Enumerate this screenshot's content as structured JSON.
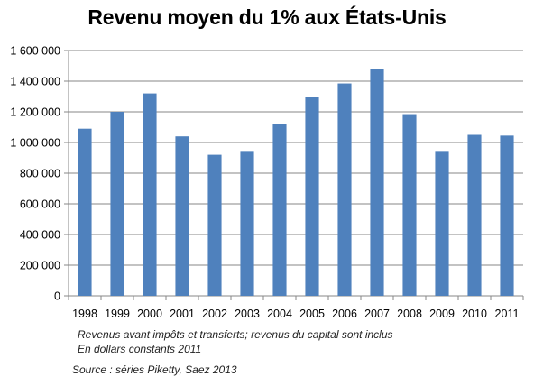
{
  "chart_data": {
    "type": "bar",
    "title": "Revenu moyen du 1% aux États-Unis",
    "categories": [
      "1998",
      "1999",
      "2000",
      "2001",
      "2002",
      "2003",
      "2004",
      "2005",
      "2006",
      "2007",
      "2008",
      "2009",
      "2010",
      "2011"
    ],
    "series": [
      {
        "values": [
          1090000,
          1200000,
          1320000,
          1040000,
          920000,
          945000,
          1120000,
          1295000,
          1385000,
          1480000,
          1185000,
          945000,
          1050000,
          1045000
        ]
      }
    ],
    "ylim": [
      0,
      1600000
    ],
    "yticks": [
      "0",
      "200 000",
      "400 000",
      "600 000",
      "800 000",
      "1 000 000",
      "1 200 000",
      "1 400 000",
      "1 600 000"
    ],
    "grid": true,
    "bar_color": "#4f81bd"
  },
  "notes": {
    "line1": "Revenus avant impôts et transferts; revenus du capital sont inclus",
    "line2": "En dollars constants 2011",
    "source": "Source : séries Piketty, Saez 2013"
  }
}
